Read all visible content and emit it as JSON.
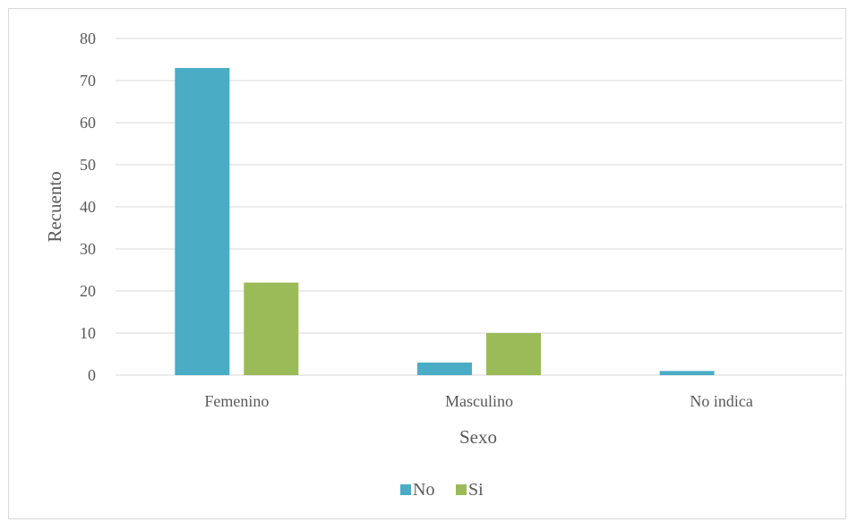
{
  "chart_data": {
    "type": "bar",
    "categories": [
      "Femenino",
      "Masculino",
      "No indica"
    ],
    "series": [
      {
        "name": "No",
        "values": [
          73,
          3,
          1
        ]
      },
      {
        "name": "Si",
        "values": [
          22,
          10,
          0
        ]
      }
    ],
    "xlabel": "Sexo",
    "ylabel": "Recuento",
    "ylim": [
      0,
      80
    ],
    "yticks": [
      0,
      10,
      20,
      30,
      40,
      50,
      60,
      70,
      80
    ],
    "grid": true,
    "legend_position": "bottom",
    "colors": {
      "No": "#4bacc6",
      "Si": "#9bbb59"
    }
  }
}
